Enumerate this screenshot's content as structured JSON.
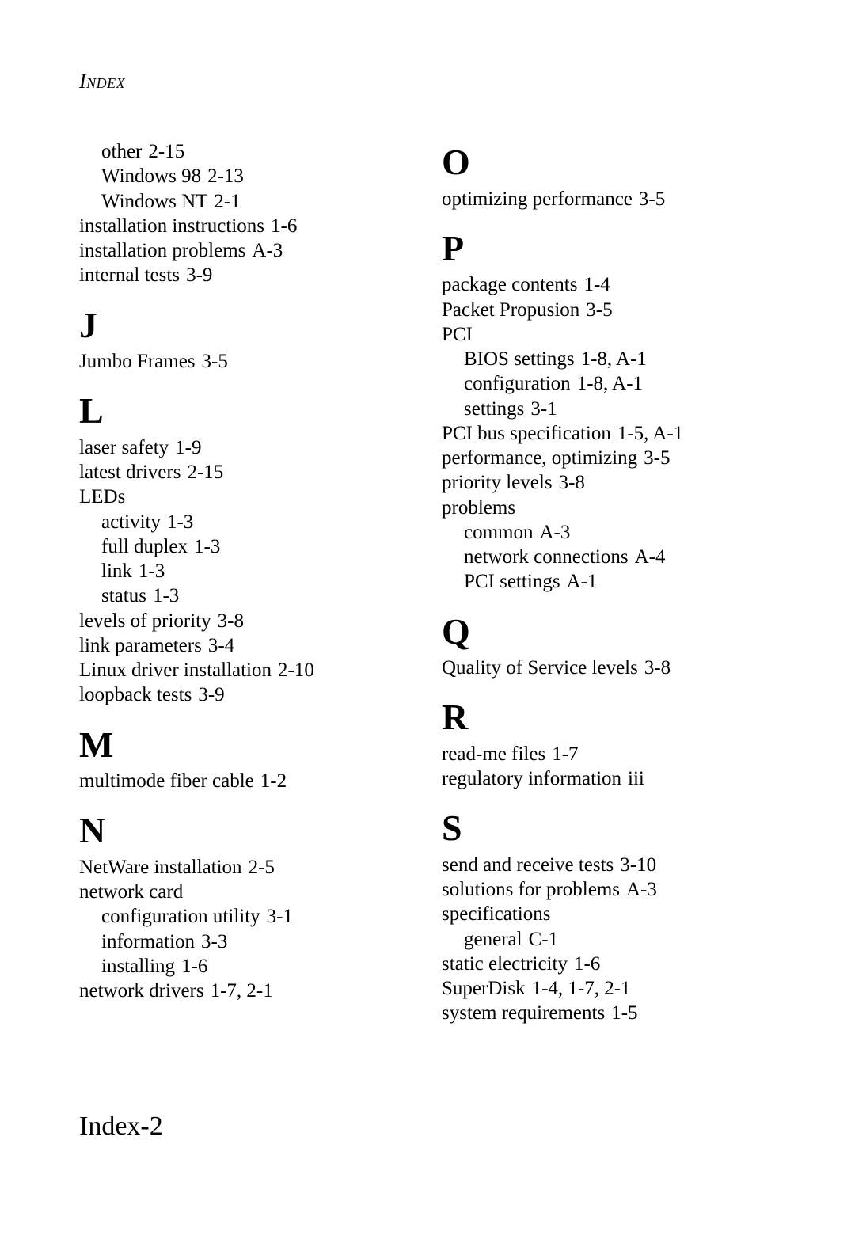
{
  "header": "Index",
  "footer": "Index-2",
  "left": {
    "pre": [
      {
        "text": "other",
        "pg": "2-15",
        "indent": true
      },
      {
        "text": "Windows 98",
        "pg": "2-13",
        "indent": true
      },
      {
        "text": "Windows NT",
        "pg": "2-1",
        "indent": true
      },
      {
        "text": "installation instructions",
        "pg": "1-6"
      },
      {
        "text": "installation problems",
        "pg": "A-3"
      },
      {
        "text": "internal tests",
        "pg": "3-9"
      }
    ],
    "J": [
      {
        "text": "Jumbo Frames",
        "pg": "3-5"
      }
    ],
    "L": [
      {
        "text": "laser safety",
        "pg": "1-9"
      },
      {
        "text": "latest drivers",
        "pg": "2-15"
      },
      {
        "text": "LEDs",
        "pg": ""
      },
      {
        "text": "activity",
        "pg": "1-3",
        "indent": true
      },
      {
        "text": "full duplex",
        "pg": "1-3",
        "indent": true
      },
      {
        "text": "link",
        "pg": "1-3",
        "indent": true
      },
      {
        "text": "status",
        "pg": "1-3",
        "indent": true
      },
      {
        "text": "levels of priority",
        "pg": "3-8"
      },
      {
        "text": "link parameters",
        "pg": "3-4"
      },
      {
        "text": "Linux driver installation",
        "pg": "2-10"
      },
      {
        "text": "loopback tests",
        "pg": "3-9"
      }
    ],
    "M": [
      {
        "text": "multimode fiber cable",
        "pg": "1-2"
      }
    ],
    "N": [
      {
        "text": "NetWare installation",
        "pg": "2-5"
      },
      {
        "text": "network card",
        "pg": ""
      },
      {
        "text": "configuration utility",
        "pg": "3-1",
        "indent": true
      },
      {
        "text": "information",
        "pg": "3-3",
        "indent": true
      },
      {
        "text": "installing",
        "pg": "1-6",
        "indent": true
      },
      {
        "text": "network drivers",
        "pg": "1-7, 2-1"
      }
    ]
  },
  "right": {
    "O": [
      {
        "text": "optimizing performance",
        "pg": "3-5"
      }
    ],
    "P": [
      {
        "text": "package contents",
        "pg": "1-4"
      },
      {
        "text": "Packet Propusion",
        "pg": "3-5"
      },
      {
        "text": "PCI",
        "pg": ""
      },
      {
        "text": "BIOS settings",
        "pg": "1-8, A-1",
        "indent": true
      },
      {
        "text": "configuration",
        "pg": "1-8, A-1",
        "indent": true
      },
      {
        "text": "settings",
        "pg": "3-1",
        "indent": true
      },
      {
        "text": "PCI bus specification",
        "pg": "1-5, A-1"
      },
      {
        "text": "performance, optimizing",
        "pg": "3-5"
      },
      {
        "text": "priority levels",
        "pg": "3-8"
      },
      {
        "text": "problems",
        "pg": ""
      },
      {
        "text": "common",
        "pg": "A-3",
        "indent": true
      },
      {
        "text": "network connections",
        "pg": "A-4",
        "indent": true
      },
      {
        "text": "PCI settings",
        "pg": "A-1",
        "indent": true
      }
    ],
    "Q": [
      {
        "text": "Quality of Service levels",
        "pg": "3-8"
      }
    ],
    "R": [
      {
        "text": "read-me files",
        "pg": "1-7"
      },
      {
        "text": "regulatory information",
        "pg": "iii"
      }
    ],
    "S": [
      {
        "text": "send and receive tests",
        "pg": "3-10"
      },
      {
        "text": "solutions for problems",
        "pg": "A-3"
      },
      {
        "text": "specifications",
        "pg": ""
      },
      {
        "text": "general",
        "pg": "C-1",
        "indent": true
      },
      {
        "text": "static electricity",
        "pg": "1-6"
      },
      {
        "text": "SuperDisk",
        "pg": "1-4, 1-7, 2-1"
      },
      {
        "text": "system requirements",
        "pg": "1-5"
      }
    ]
  }
}
